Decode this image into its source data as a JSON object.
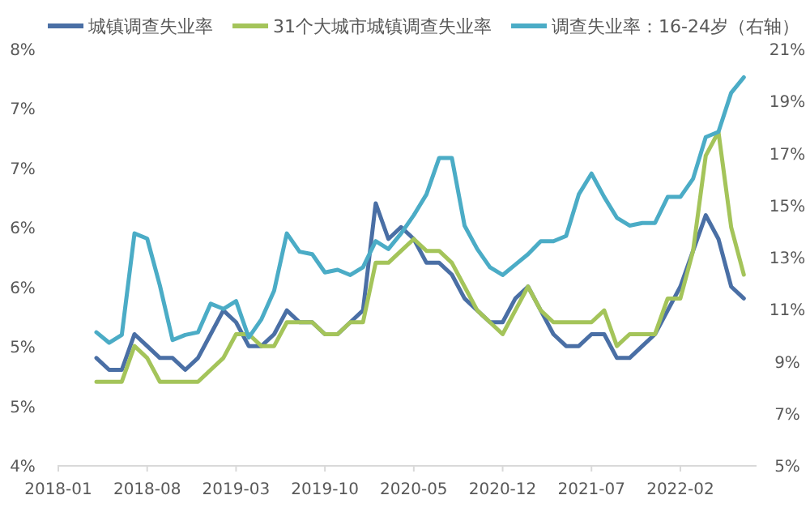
{
  "chart_data": {
    "type": "line",
    "legend": "top",
    "line_style": "solid",
    "marker": "none",
    "x": [
      "2018-04",
      "2018-05",
      "2018-06",
      "2018-07",
      "2018-08",
      "2018-09",
      "2018-10",
      "2018-11",
      "2018-12",
      "2019-01",
      "2019-02",
      "2019-03",
      "2019-04",
      "2019-05",
      "2019-06",
      "2019-07",
      "2019-08",
      "2019-09",
      "2019-10",
      "2019-11",
      "2019-12",
      "2020-01",
      "2020-02",
      "2020-03",
      "2020-04",
      "2020-05",
      "2020-06",
      "2020-07",
      "2020-08",
      "2020-09",
      "2020-10",
      "2020-11",
      "2020-12",
      "2021-01",
      "2021-02",
      "2021-03",
      "2021-04",
      "2021-05",
      "2021-06",
      "2021-07",
      "2021-08",
      "2021-09",
      "2021-10",
      "2021-11",
      "2021-12",
      "2022-01",
      "2022-02",
      "2022-03",
      "2022-04",
      "2022-05",
      "2022-06",
      "2022-07"
    ],
    "series": [
      {
        "name": "城镇调查失业率",
        "color": "#4a6fa5",
        "values": [
          4.9,
          4.8,
          4.8,
          5.1,
          5.0,
          4.9,
          4.9,
          4.8,
          4.9,
          5.1,
          5.3,
          5.2,
          5.0,
          5.0,
          5.1,
          5.3,
          5.2,
          5.2,
          5.1,
          5.1,
          5.2,
          5.3,
          6.2,
          5.9,
          6.0,
          5.9,
          5.7,
          5.7,
          5.6,
          5.4,
          5.3,
          5.2,
          5.2,
          5.4,
          5.5,
          5.3,
          5.1,
          5.0,
          5.0,
          5.1,
          5.1,
          4.9,
          4.9,
          5.0,
          5.1,
          5.3,
          5.5,
          5.8,
          6.1,
          5.9,
          5.5,
          5.4
        ]
      },
      {
        "name": "31个大城市城镇调查失业率",
        "color": "#a4c45a",
        "values": [
          4.7,
          4.7,
          4.7,
          5.0,
          4.9,
          4.7,
          4.7,
          4.7,
          4.7,
          4.8,
          4.9,
          5.1,
          5.1,
          5.0,
          5.0,
          5.2,
          5.2,
          5.2,
          5.1,
          5.1,
          5.2,
          5.2,
          5.7,
          5.7,
          5.8,
          5.9,
          5.8,
          5.8,
          5.7,
          5.5,
          5.3,
          5.2,
          5.1,
          5.3,
          5.5,
          5.3,
          5.2,
          5.2,
          5.2,
          5.2,
          5.3,
          5.0,
          5.1,
          5.1,
          5.1,
          5.4,
          5.4,
          5.8,
          6.6,
          6.8,
          6.0,
          5.6
        ]
      },
      {
        "name": "调查失业率：16-24岁（右轴）",
        "color": "#4bacc6",
        "axis": "y2",
        "values": [
          10.1,
          9.7,
          10.0,
          13.9,
          13.7,
          11.9,
          9.8,
          10.0,
          10.1,
          11.2,
          11.0,
          11.3,
          9.9,
          10.6,
          11.7,
          13.9,
          13.2,
          13.1,
          12.4,
          12.5,
          12.3,
          12.6,
          13.6,
          13.3,
          13.9,
          14.6,
          15.4,
          16.8,
          16.8,
          14.2,
          13.3,
          12.6,
          12.3,
          12.7,
          13.1,
          13.6,
          13.6,
          13.8,
          15.4,
          16.2,
          15.3,
          14.5,
          14.2,
          14.3,
          14.3,
          15.3,
          15.3,
          16.0,
          17.6,
          17.8,
          19.3,
          19.9
        ]
      }
    ],
    "xlim": [
      "2018-01",
      "2022-08"
    ],
    "xticks": [
      "2018-01",
      "2018-08",
      "2019-03",
      "2019-10",
      "2020-05",
      "2020-12",
      "2021-07",
      "2022-02"
    ],
    "ylim": [
      4,
      7.5
    ],
    "yticks": [
      {
        "value": 4,
        "label": "4%"
      },
      {
        "value": 4.5,
        "label": "5%"
      },
      {
        "value": 5,
        "label": "5%"
      },
      {
        "value": 5.5,
        "label": "6%"
      },
      {
        "value": 6,
        "label": "6%"
      },
      {
        "value": 6.5,
        "label": "7%"
      },
      {
        "value": 7,
        "label": "7%"
      },
      {
        "value": 7.5,
        "label": "8%"
      }
    ],
    "y2lim": [
      5,
      21
    ],
    "y2ticks": [
      {
        "value": 5,
        "label": "5%"
      },
      {
        "value": 7,
        "label": "7%"
      },
      {
        "value": 9,
        "label": "9%"
      },
      {
        "value": 11,
        "label": "11%"
      },
      {
        "value": 13,
        "label": "13%"
      },
      {
        "value": 15,
        "label": "15%"
      },
      {
        "value": 17,
        "label": "17%"
      },
      {
        "value": 19,
        "label": "19%"
      },
      {
        "value": 21,
        "label": "21%"
      }
    ]
  }
}
